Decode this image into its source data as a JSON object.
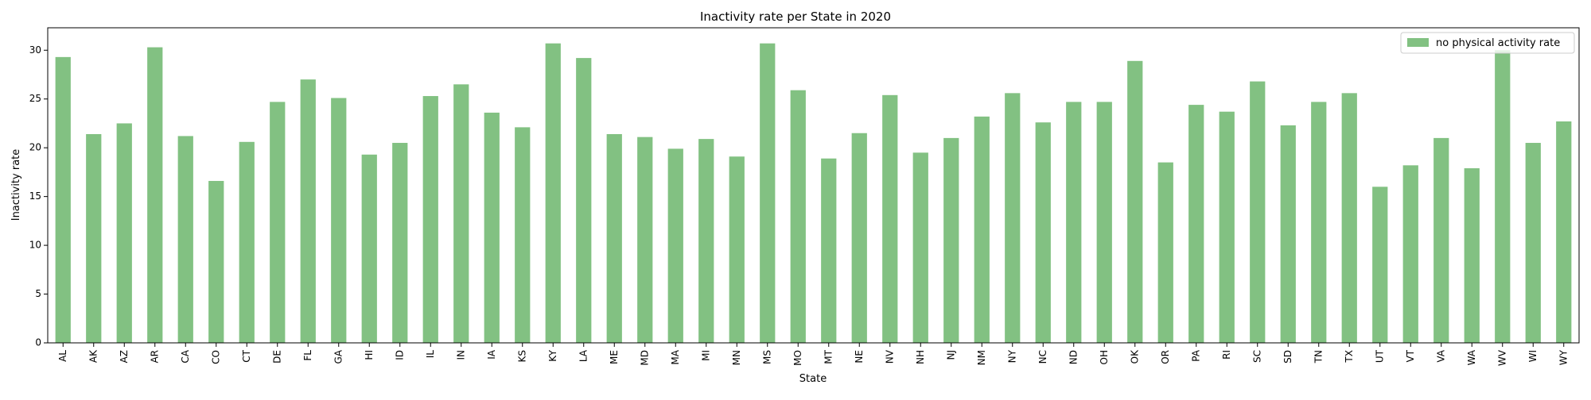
{
  "chart_data": {
    "type": "bar",
    "title": "Inactivity rate per State in 2020",
    "xlabel": "State",
    "ylabel": "Inactivity rate",
    "ylim": [
      0,
      32.3
    ],
    "yticks": [
      0,
      5,
      10,
      15,
      20,
      25,
      30
    ],
    "grid": false,
    "legend_position": "top-right",
    "bar_color": "#82C182",
    "categories": [
      "AL",
      "AK",
      "AZ",
      "AR",
      "CA",
      "CO",
      "CT",
      "DE",
      "FL",
      "GA",
      "HI",
      "ID",
      "IL",
      "IN",
      "IA",
      "KS",
      "KY",
      "LA",
      "ME",
      "MD",
      "MA",
      "MI",
      "MN",
      "MS",
      "MO",
      "MT",
      "NE",
      "NV",
      "NH",
      "NJ",
      "NM",
      "NY",
      "NC",
      "ND",
      "OH",
      "OK",
      "OR",
      "PA",
      "RI",
      "SC",
      "SD",
      "TN",
      "TX",
      "UT",
      "VT",
      "VA",
      "WA",
      "WV",
      "WI",
      "WY"
    ],
    "series": [
      {
        "name": "no physical activity rate",
        "values": [
          29.3,
          21.4,
          22.5,
          30.3,
          21.2,
          16.6,
          20.6,
          24.7,
          27.0,
          25.1,
          19.3,
          20.5,
          25.3,
          26.5,
          23.6,
          22.1,
          30.7,
          29.2,
          21.4,
          21.1,
          19.9,
          20.9,
          19.1,
          30.7,
          25.9,
          18.9,
          21.5,
          25.4,
          19.5,
          21.0,
          23.2,
          25.6,
          22.6,
          24.7,
          24.7,
          28.9,
          18.5,
          24.4,
          23.7,
          26.8,
          22.3,
          24.7,
          25.6,
          16.0,
          18.2,
          21.0,
          17.9,
          30.0,
          20.5,
          22.7
        ]
      }
    ]
  }
}
